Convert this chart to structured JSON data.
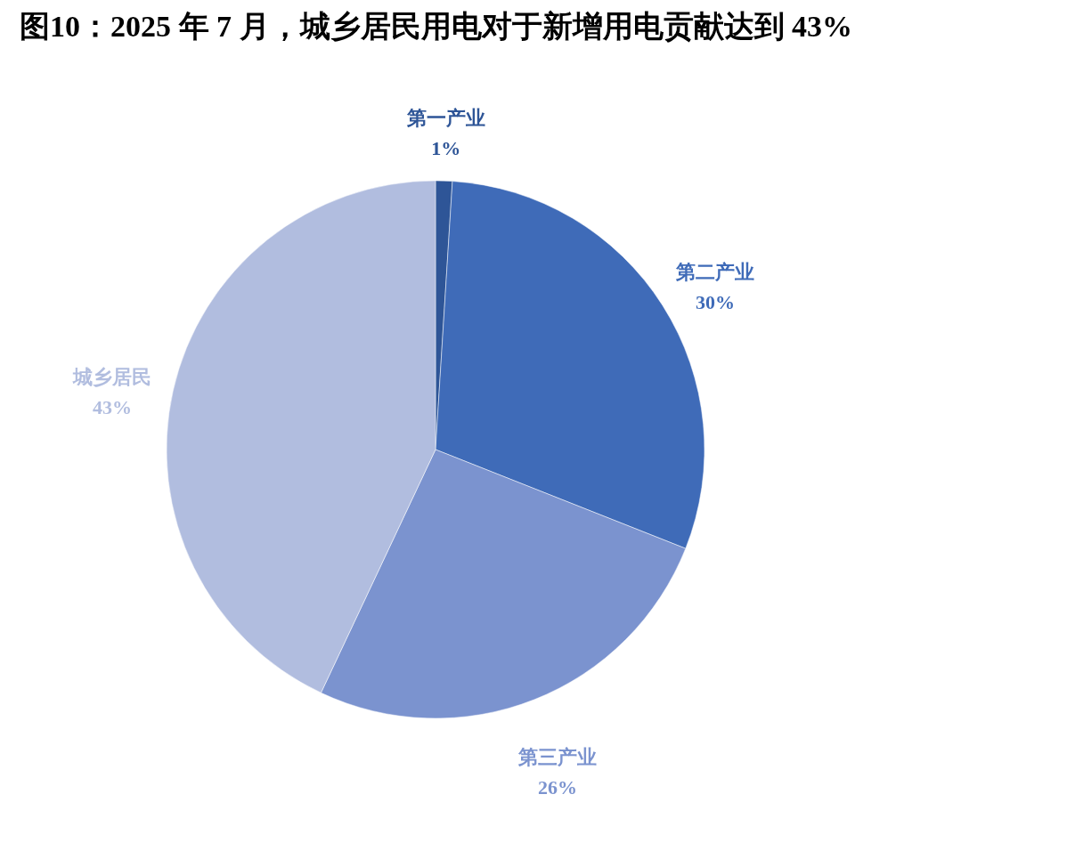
{
  "chart_data": {
    "type": "pie",
    "title": "图10：2025 年 7 月，城乡居民用电对于新增用电贡献达到 43%",
    "categories": [
      "第一产业",
      "第二产业",
      "第三产业",
      "城乡居民"
    ],
    "values": [
      1,
      30,
      26,
      43
    ],
    "colors": [
      "#2e5597",
      "#3f6bb8",
      "#7b93cf",
      "#b1bddf"
    ],
    "value_labels": [
      "1%",
      "30%",
      "26%",
      "43%"
    ]
  }
}
